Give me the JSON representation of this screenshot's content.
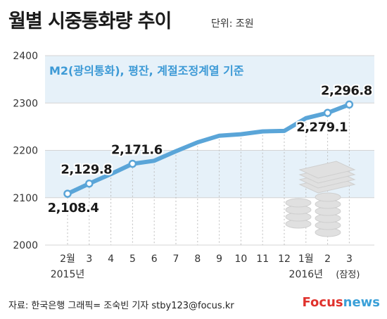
{
  "header": {
    "title": "월별 시중통화량 추이",
    "unit": "단위: 조원"
  },
  "footer": {
    "source": "자료: 한국은행   그래픽= 조숙빈 기자 stby123@focus.kr",
    "logo_brand": "Focus",
    "logo_suffix": "news"
  },
  "colors": {
    "line": "#5aa5d8",
    "point_border": "#5aa5d8",
    "band": "#e6f1f9",
    "note": "#3d9ad6"
  },
  "chart_data": {
    "type": "line",
    "title": "월별 시중통화량 추이",
    "note": "M2(광의통화), 평잔, 계절조정계열 기준",
    "ylabel": "",
    "xlabel": "",
    "ylim": [
      2000,
      2400
    ],
    "yticks": [
      2000,
      2100,
      2200,
      2300,
      2400
    ],
    "categories": [
      "2015-02",
      "2015-03",
      "2015-04",
      "2015-05",
      "2015-06",
      "2015-07",
      "2015-08",
      "2015-09",
      "2015-10",
      "2015-11",
      "2015-12",
      "2016-01",
      "2016-02",
      "2016-03"
    ],
    "x_tick_labels": [
      "2월",
      "3",
      "4",
      "5",
      "6",
      "7",
      "8",
      "9",
      "10",
      "11",
      "12",
      "1월",
      "2",
      "3"
    ],
    "year_labels": [
      {
        "index": 0,
        "text": "2015년"
      },
      {
        "index": 11,
        "text": "2016년"
      }
    ],
    "provisional_label": {
      "index": 13,
      "text": "(잠정)"
    },
    "values": [
      2108.4,
      2129.8,
      2150,
      2171.6,
      2178,
      2198,
      2217,
      2231,
      2234,
      2240,
      2241,
      2268,
      2279.1,
      2296.8
    ],
    "data_labels": [
      {
        "index": 0,
        "text": "2,108.4"
      },
      {
        "index": 1,
        "text": "2,129.8"
      },
      {
        "index": 3,
        "text": "2,171.6"
      },
      {
        "index": 12,
        "text": "2,279.1"
      },
      {
        "index": 13,
        "text": "2,296.8"
      }
    ],
    "highlight_points": [
      0,
      1,
      3,
      12,
      13
    ],
    "grid": true
  }
}
